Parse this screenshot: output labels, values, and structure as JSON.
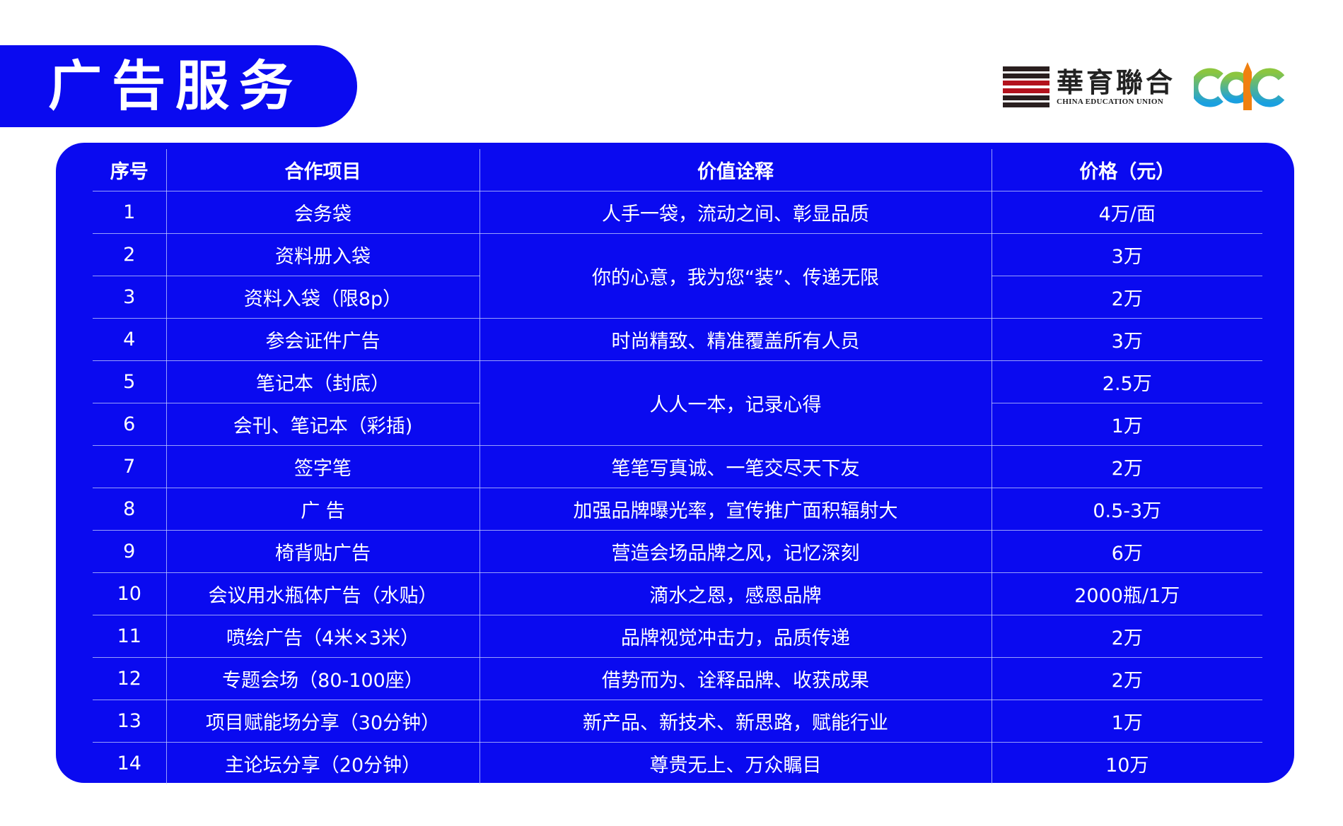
{
  "header": {
    "title": "广告服务"
  },
  "logo": {
    "cn": "華育聯合",
    "en": "CHINA EDUCATION UNION",
    "mark": "CCC"
  },
  "colors": {
    "brand_blue": "#0a0af0",
    "text": "#ffffff"
  },
  "table": {
    "columns": [
      "序号",
      "合作项目",
      "价值诠释",
      "价格（元）"
    ],
    "rows": [
      {
        "no": "1",
        "item": "会务袋",
        "value": "人手一袋，流动之间、彰显品质",
        "value_rowspan": 1,
        "price": "4万/面"
      },
      {
        "no": "2",
        "item": "资料册入袋",
        "value": "你的心意，我为您“装”、传递无限",
        "value_rowspan": 2,
        "price": "3万"
      },
      {
        "no": "3",
        "item": "资料入袋（限8p）",
        "value": null,
        "price": "2万"
      },
      {
        "no": "4",
        "item": "参会证件广告",
        "value": "时尚精致、精准覆盖所有人员",
        "value_rowspan": 1,
        "price": "3万"
      },
      {
        "no": "5",
        "item": "笔记本（封底）",
        "value": "人人一本，记录心得",
        "value_rowspan": 2,
        "price": "2.5万"
      },
      {
        "no": "6",
        "item": "会刊、笔记本（彩插)",
        "value": null,
        "price": "1万"
      },
      {
        "no": "7",
        "item": "签字笔",
        "value": "笔笔写真诚、一笔交尽天下友",
        "value_rowspan": 1,
        "price": "2万"
      },
      {
        "no": "8",
        "item": "广  告",
        "value": "加强品牌曝光率，宣传推广面积辐射大",
        "value_rowspan": 1,
        "price": "0.5-3万"
      },
      {
        "no": "9",
        "item": "椅背贴广告",
        "value": "营造会场品牌之风，记忆深刻",
        "value_rowspan": 1,
        "price": "6万"
      },
      {
        "no": "10",
        "item": "会议用水瓶体广告（水贴）",
        "value": "滴水之恩，感恩品牌",
        "value_rowspan": 1,
        "price": "2000瓶/1万"
      },
      {
        "no": "11",
        "item": "喷绘广告（4米×3米）",
        "value": "品牌视觉冲击力，品质传递",
        "value_rowspan": 1,
        "price": "2万"
      },
      {
        "no": "12",
        "item": "专题会场（80-100座）",
        "value": "借势而为、诠释品牌、收获成果",
        "value_rowspan": 1,
        "price": "2万"
      },
      {
        "no": "13",
        "item": "项目赋能场分享（30分钟）",
        "value": "新产品、新技术、新思路，赋能行业",
        "value_rowspan": 1,
        "price": "1万"
      },
      {
        "no": "14",
        "item": "主论坛分享（20分钟）",
        "value": "尊贵无上、万众瞩目",
        "value_rowspan": 1,
        "price": "10万"
      }
    ]
  }
}
